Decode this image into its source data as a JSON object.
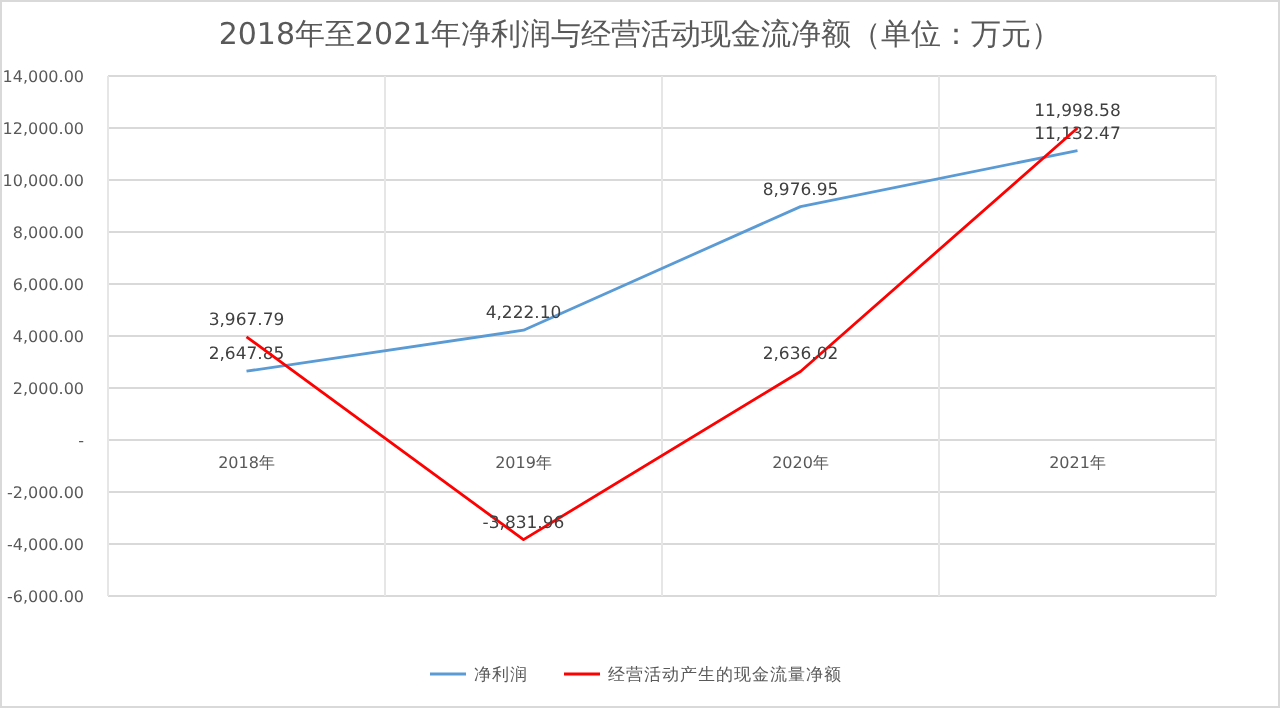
{
  "chart_data": {
    "type": "line",
    "title": "2018年至2021年净利润与经营活动现金流净额（单位：万元）",
    "categories": [
      "2018年",
      "2019年",
      "2020年",
      "2021年"
    ],
    "series": [
      {
        "name": "净利润",
        "color": "#5b9bd5",
        "values": [
          2647.85,
          4222.1,
          8976.95,
          11132.47
        ],
        "value_labels": [
          "2,647.85",
          "4,222.10",
          "8,976.95",
          "11,132.47"
        ]
      },
      {
        "name": "经营活动产生的现金流量净额",
        "color": "#ff0000",
        "values": [
          3967.79,
          -3831.96,
          2636.02,
          11998.58
        ],
        "value_labels": [
          "3,967.79",
          "-3,831.96",
          "2,636.02",
          "11,998.58"
        ]
      }
    ],
    "ylim": [
      -6000,
      14000
    ],
    "yticks": [
      {
        "value": -6000,
        "label": "-6,000.00"
      },
      {
        "value": -4000,
        "label": "-4,000.00"
      },
      {
        "value": -2000,
        "label": "-2,000.00"
      },
      {
        "value": 0,
        "label": "-"
      },
      {
        "value": 2000,
        "label": "2,000.00"
      },
      {
        "value": 4000,
        "label": "4,000.00"
      },
      {
        "value": 6000,
        "label": "6,000.00"
      },
      {
        "value": 8000,
        "label": "8,000.00"
      },
      {
        "value": 10000,
        "label": "10,000.00"
      },
      {
        "value": 12000,
        "label": "12,000.00"
      },
      {
        "value": 14000,
        "label": "14,000.00"
      }
    ],
    "grid": true,
    "legend": "bottom",
    "marker": "none",
    "line_style": "solid"
  }
}
